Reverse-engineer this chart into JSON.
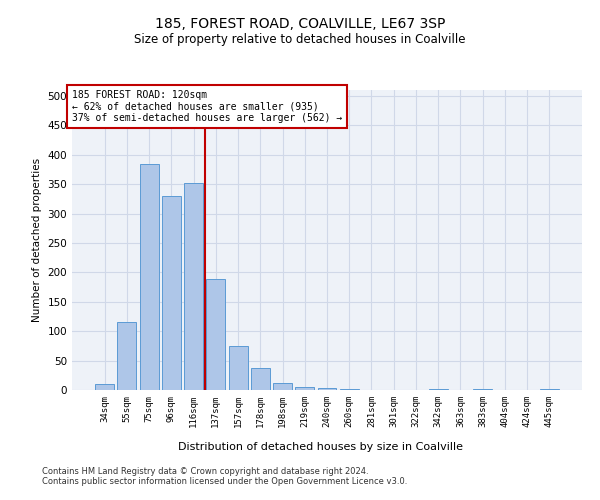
{
  "title1": "185, FOREST ROAD, COALVILLE, LE67 3SP",
  "title2": "Size of property relative to detached houses in Coalville",
  "xlabel": "Distribution of detached houses by size in Coalville",
  "ylabel": "Number of detached properties",
  "footer1": "Contains HM Land Registry data © Crown copyright and database right 2024.",
  "footer2": "Contains public sector information licensed under the Open Government Licence v3.0.",
  "bin_labels": [
    "34sqm",
    "55sqm",
    "75sqm",
    "96sqm",
    "116sqm",
    "137sqm",
    "157sqm",
    "178sqm",
    "198sqm",
    "219sqm",
    "240sqm",
    "260sqm",
    "281sqm",
    "301sqm",
    "322sqm",
    "342sqm",
    "363sqm",
    "383sqm",
    "404sqm",
    "424sqm",
    "445sqm"
  ],
  "bar_heights": [
    10,
    115,
    385,
    330,
    352,
    188,
    75,
    37,
    12,
    5,
    3,
    2,
    0,
    0,
    0,
    2,
    0,
    1,
    0,
    0,
    1
  ],
  "bar_color": "#aec6e8",
  "bar_edge_color": "#5b9bd5",
  "grid_color": "#d0d8e8",
  "bg_color": "#eef2f8",
  "vline_x_index": 4,
  "vline_color": "#c00000",
  "annotation_text": "185 FOREST ROAD: 120sqm\n← 62% of detached houses are smaller (935)\n37% of semi-detached houses are larger (562) →",
  "annotation_box_color": "#ffffff",
  "annotation_box_edge": "#c00000",
  "ylim": [
    0,
    510
  ],
  "yticks": [
    0,
    50,
    100,
    150,
    200,
    250,
    300,
    350,
    400,
    450,
    500
  ]
}
